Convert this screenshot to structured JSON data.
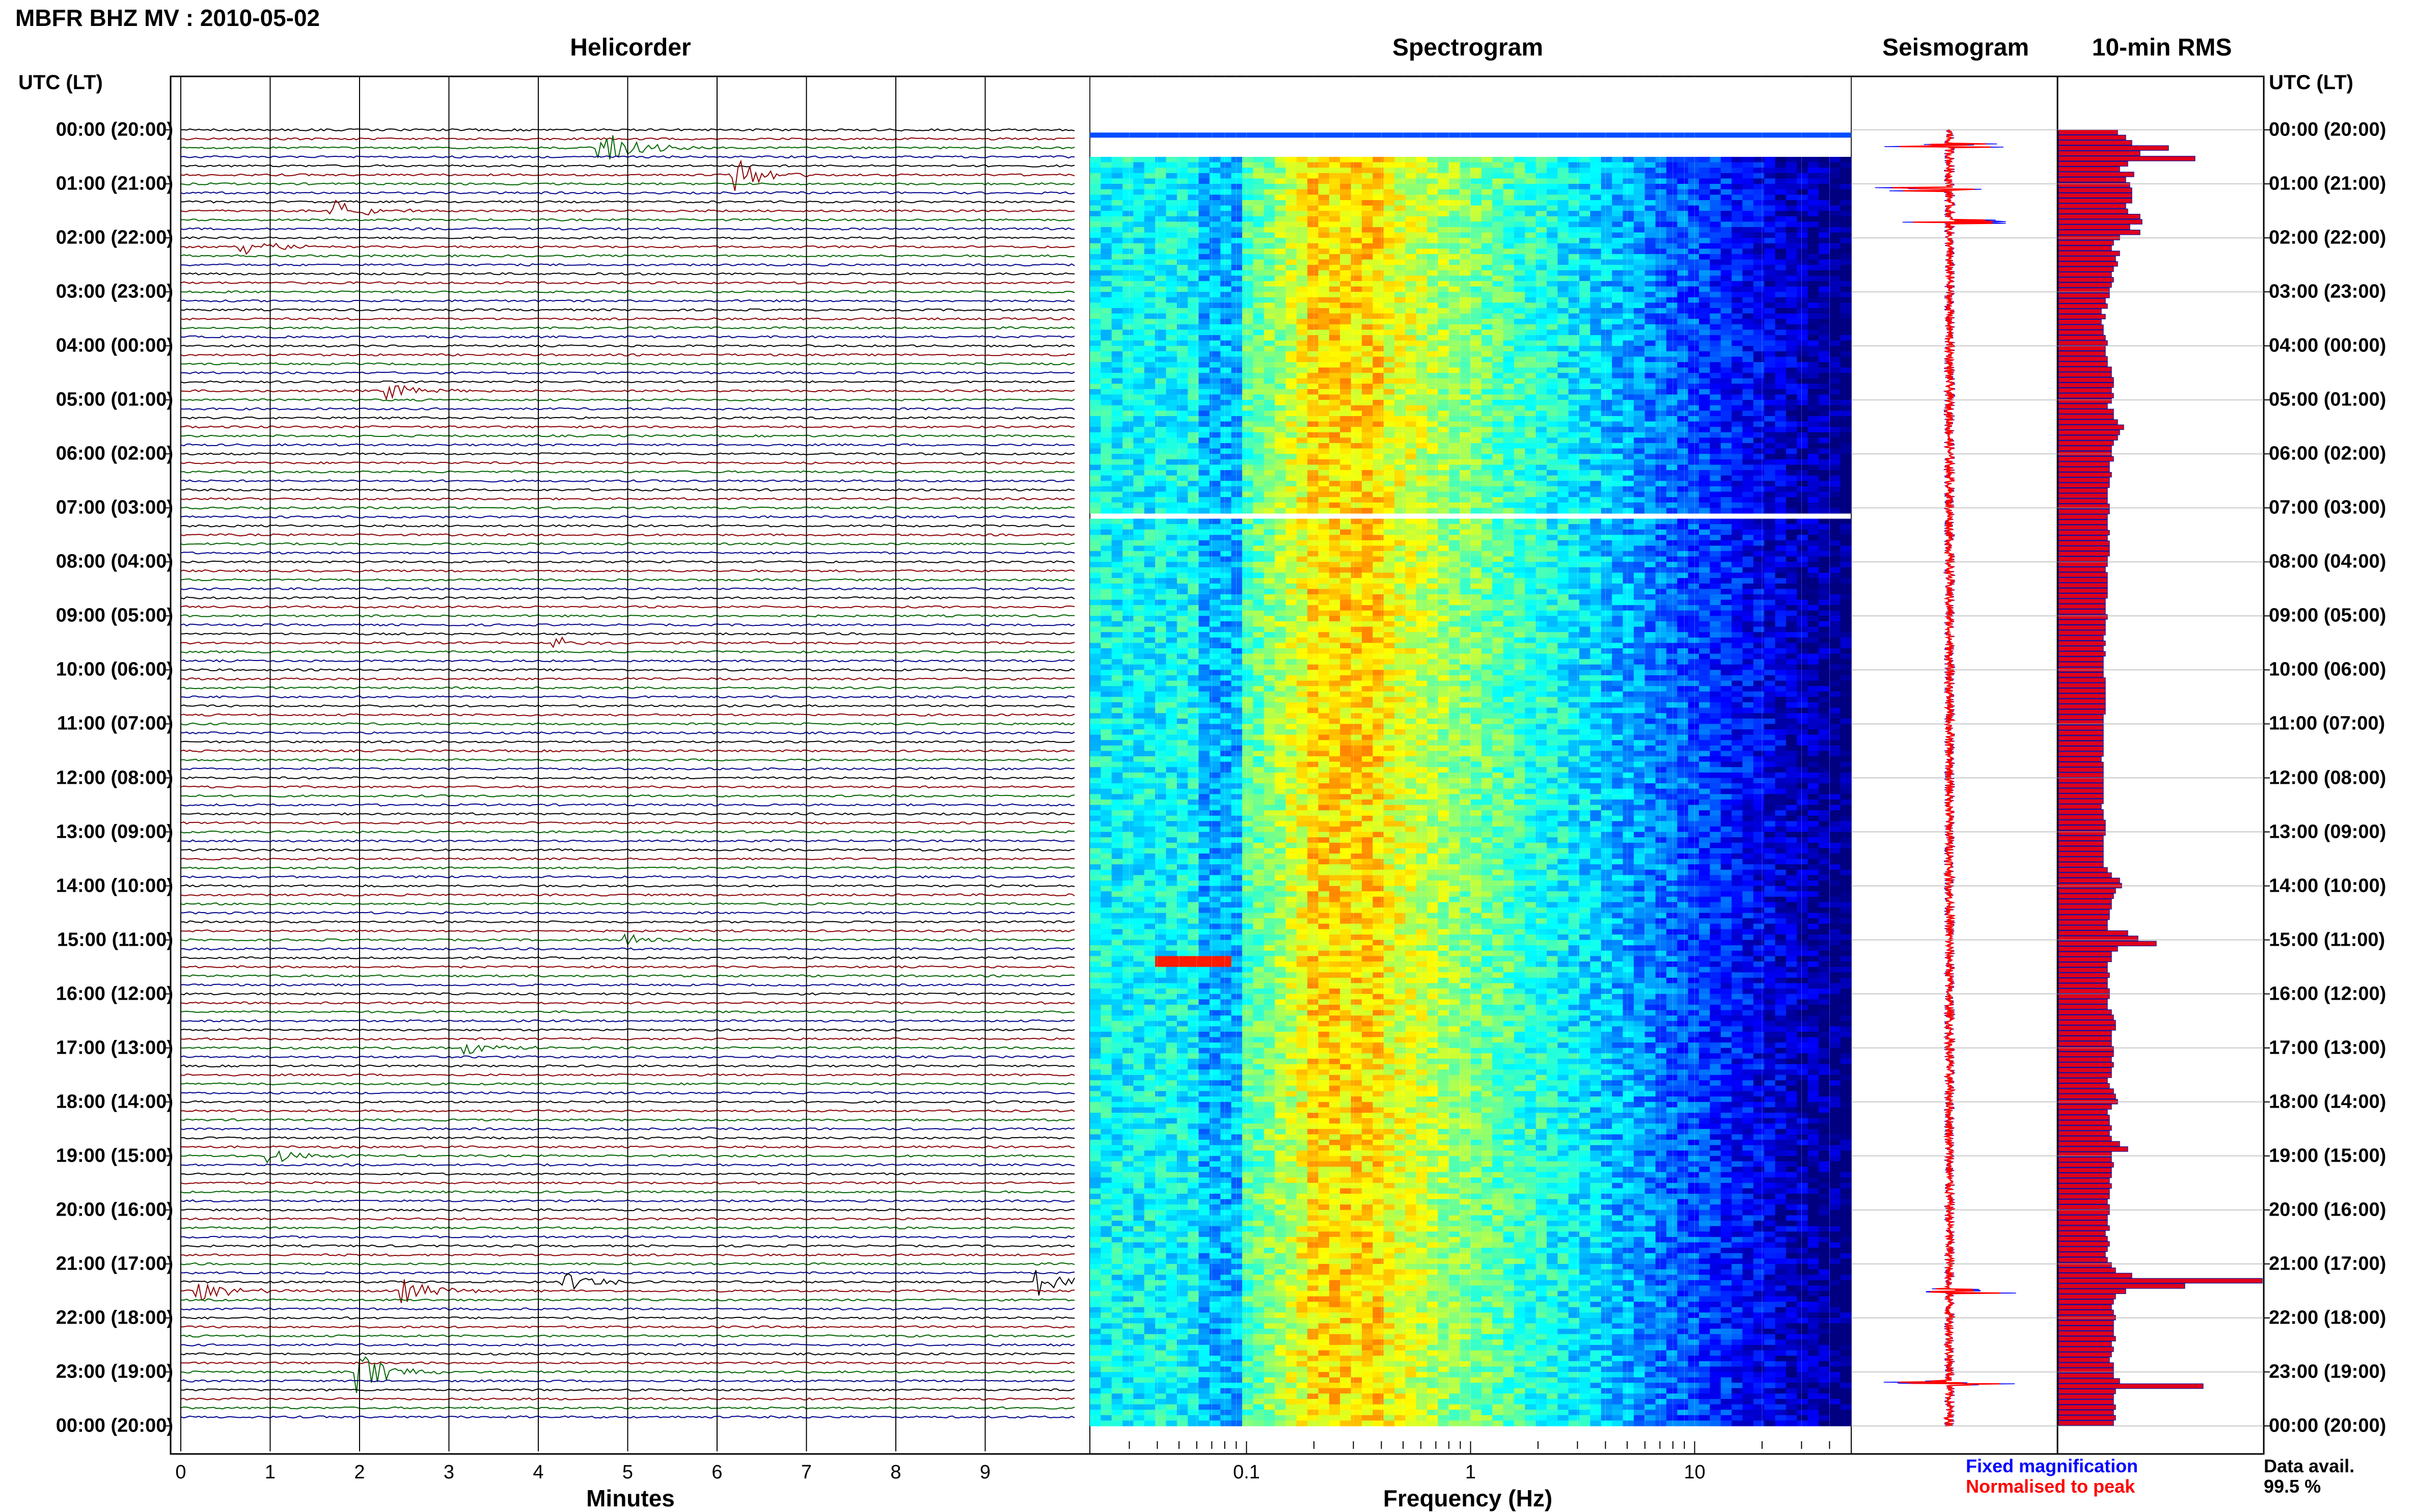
{
  "header": {
    "title": "MBFR BHZ MV : 2010-05-02",
    "panels": [
      "Helicorder",
      "Spectrogram",
      "Seismogram",
      "10-min RMS"
    ],
    "time_axis_label": "UTC (LT)"
  },
  "time_labels": [
    "00:00 (20:00)",
    "01:00 (21:00)",
    "02:00 (22:00)",
    "03:00 (23:00)",
    "04:00 (00:00)",
    "05:00 (01:00)",
    "06:00 (02:00)",
    "07:00 (03:00)",
    "08:00 (04:00)",
    "09:00 (05:00)",
    "10:00 (06:00)",
    "11:00 (07:00)",
    "12:00 (08:00)",
    "13:00 (09:00)",
    "14:00 (10:00)",
    "15:00 (11:00)",
    "16:00 (12:00)",
    "17:00 (13:00)",
    "18:00 (14:00)",
    "19:00 (15:00)",
    "20:00 (16:00)",
    "21:00 (17:00)",
    "22:00 (18:00)",
    "23:00 (19:00)",
    "00:00 (20:00)"
  ],
  "colors": {
    "trace_colors": [
      "#000000",
      "#8b0000",
      "#006400",
      "#00008b"
    ],
    "fixed": "#0000ff",
    "normalised": "#ff0000",
    "rms_fill": "#e0001b",
    "rms_edge": "#1010a0"
  },
  "legend": {
    "fixed": "Fixed magnification",
    "normalised": "Normalised to peak",
    "avail_label": "Data avail.",
    "avail_value": "99.5 %"
  },
  "chart_data": [
    {
      "type": "line",
      "name": "Helicorder",
      "xlabel": "Minutes",
      "xlim": [
        0,
        10
      ],
      "x_ticks": [
        0,
        1,
        2,
        3,
        4,
        5,
        6,
        7,
        8,
        9
      ],
      "rows_per_hour": 6,
      "events": [
        {
          "hour": 0.33,
          "minute": 4.7,
          "amp": 3.5
        },
        {
          "hour": 0.85,
          "minute": 6.2,
          "amp": 3.2
        },
        {
          "hour": 1.55,
          "minute": 1.7,
          "amp": 2.2
        },
        {
          "hour": 2.2,
          "minute": 0.7,
          "amp": 2.0
        },
        {
          "hour": 4.85,
          "minute": 2.3,
          "amp": 1.6
        },
        {
          "hour": 9.5,
          "minute": 4.2,
          "amp": 1.0
        },
        {
          "hour": 14.95,
          "minute": 5.0,
          "amp": 1.2
        },
        {
          "hour": 16.95,
          "minute": 3.2,
          "amp": 1.4
        },
        {
          "hour": 18.95,
          "minute": 1.0,
          "amp": 1.5
        },
        {
          "hour": 21.45,
          "minute": 0.2,
          "amp": 2.0
        },
        {
          "hour": 21.45,
          "minute": 2.5,
          "amp": 2.0
        },
        {
          "hour": 21.3,
          "minute": 4.3,
          "amp": 1.8
        },
        {
          "hour": 21.3,
          "minute": 9.6,
          "amp": 2.4
        },
        {
          "hour": 23.0,
          "minute": 2.0,
          "amp": 3.5
        }
      ]
    },
    {
      "type": "heatmap",
      "name": "Spectrogram",
      "xlabel": "Frequency (Hz)",
      "x_scale": "log",
      "xlim": [
        0.02,
        50
      ],
      "x_tick_labels": [
        {
          "f": 0.1,
          "label": "0.1"
        },
        {
          "f": 1,
          "label": "1"
        },
        {
          "f": 10,
          "label": "10"
        }
      ],
      "peak_band_hz": [
        0.18,
        0.4
      ],
      "gaps_hours": [
        0.0,
        0.25,
        7.1
      ]
    },
    {
      "type": "line",
      "name": "Seismogram",
      "series": [
        "Fixed magnification",
        "Normalised to peak"
      ],
      "spikes_hours": [
        0.3,
        1.1,
        1.7,
        21.5,
        23.2
      ]
    },
    {
      "type": "bar",
      "name": "10-min RMS",
      "orientation": "horizontal",
      "xlim": [
        0,
        100
      ],
      "values": [
        29,
        33,
        36,
        54,
        40,
        67,
        34,
        30,
        37,
        33,
        35,
        36,
        36,
        36,
        33,
        34,
        40,
        41,
        35,
        40,
        30,
        27,
        26,
        30,
        28,
        29,
        27,
        26,
        27,
        26,
        25,
        25,
        23,
        24,
        21,
        23,
        21,
        22,
        22,
        23,
        24,
        23,
        23,
        24,
        24,
        26,
        26,
        27,
        27,
        26,
        27,
        26,
        24,
        27,
        27,
        29,
        32,
        30,
        29,
        27,
        26,
        26,
        27,
        25,
        25,
        26,
        25,
        25,
        24,
        24,
        24,
        25,
        25,
        24,
        24,
        24,
        25,
        24,
        25,
        25,
        25,
        24,
        24,
        23,
        24,
        24,
        24,
        24,
        24,
        23,
        23,
        23,
        24,
        23,
        23,
        23,
        22,
        23,
        22,
        23,
        22,
        22,
        22,
        22,
        23,
        23,
        23,
        23,
        23,
        23,
        23,
        22,
        22,
        22,
        22,
        22,
        22,
        22,
        22,
        21,
        22,
        22,
        22,
        22,
        22,
        22,
        22,
        22,
        21,
        22,
        22,
        23,
        23,
        23,
        22,
        22,
        22,
        22,
        22,
        22,
        24,
        26,
        30,
        31,
        28,
        27,
        26,
        26,
        25,
        25,
        24,
        24,
        34,
        39,
        48,
        29,
        26,
        26,
        24,
        24,
        25,
        24,
        24,
        25,
        25,
        24,
        24,
        26,
        27,
        28,
        28,
        26,
        26,
        26,
        27,
        27,
        26,
        27,
        26,
        26,
        24,
        25,
        27,
        28,
        29,
        26,
        24,
        25,
        25,
        26,
        25,
        26,
        30,
        34,
        26,
        26,
        27,
        26,
        26,
        25,
        26,
        25,
        25,
        24,
        25,
        25,
        24,
        24,
        25,
        23,
        24,
        25,
        24,
        23,
        24,
        26,
        28,
        36,
        100,
        62,
        33,
        28,
        27,
        26,
        27,
        28,
        27,
        27,
        27,
        28,
        26,
        27,
        26,
        25,
        27,
        27,
        27,
        30,
        71,
        28,
        27,
        27,
        28,
        27,
        28,
        27
      ]
    }
  ]
}
